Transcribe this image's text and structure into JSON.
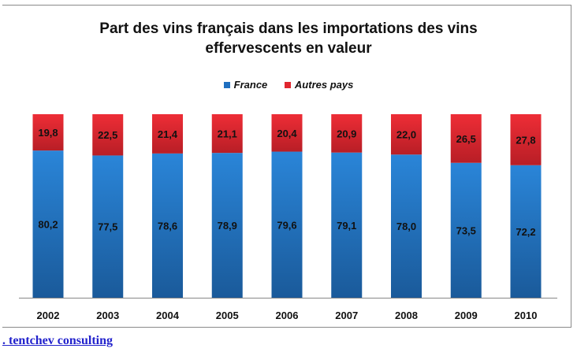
{
  "chart_data": {
    "type": "bar",
    "stacked": true,
    "title": "Part des vins français dans les importations des vins effervescents en valeur",
    "title_lines": [
      "Part des vins français dans les importations des vins",
      "effervescents en valeur"
    ],
    "categories": [
      "2002",
      "2003",
      "2004",
      "2005",
      "2006",
      "2007",
      "2008",
      "2009",
      "2010"
    ],
    "series": [
      {
        "name": "France",
        "color": "#1f6fc0",
        "values": [
          80.2,
          77.5,
          78.6,
          78.9,
          79.6,
          79.1,
          78.0,
          73.5,
          72.2
        ],
        "labels": [
          "80,2",
          "77,5",
          "78,6",
          "78,9",
          "79,6",
          "79,1",
          "78,0",
          "73,5",
          "72,2"
        ]
      },
      {
        "name": "Autres pays",
        "color": "#e0262f",
        "values": [
          19.8,
          22.5,
          21.4,
          21.1,
          20.4,
          20.9,
          22.0,
          26.5,
          27.8
        ],
        "labels": [
          "19,8",
          "22,5",
          "21,4",
          "21,1",
          "20,4",
          "20,9",
          "22,0",
          "26,5",
          "27,8"
        ]
      }
    ],
    "ylim": [
      0,
      100
    ],
    "legend_position": "top",
    "grid": false
  },
  "footer": {
    "link_text": ". tentchev consulting  "
  }
}
